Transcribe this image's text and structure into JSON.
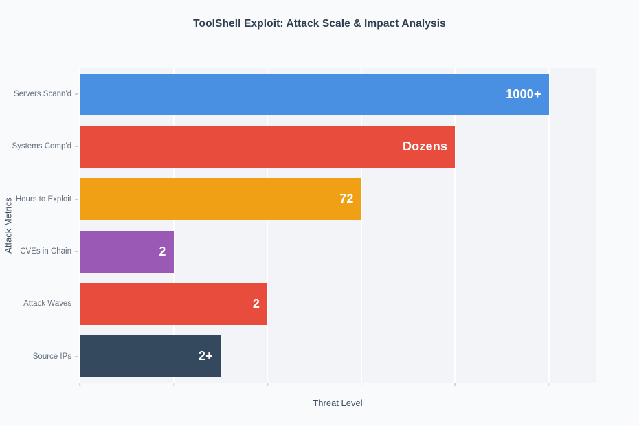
{
  "chart_data": {
    "type": "bar",
    "orientation": "horizontal",
    "title": "ToolShell Exploit: Attack Scale & Impact Analysis",
    "xlabel": "Threat Level",
    "ylabel": "Attack Metrics",
    "categories": [
      "Servers Scann'd",
      "Systems Comp'd",
      "Hours to Exploit",
      "CVEs in Chain",
      "Attack Waves",
      "Source IPs"
    ],
    "values": [
      5,
      4,
      3,
      1,
      2,
      1.5
    ],
    "value_labels": [
      "1000+",
      "Dozens",
      "72",
      "2",
      "2",
      "2+"
    ],
    "bar_colors": [
      "#4a90e2",
      "#e74c3c",
      "#f0a015",
      "#9b59b6",
      "#e74c3c",
      "#34495e"
    ],
    "xlim": [
      0,
      5.5
    ],
    "gridline_values": [
      0,
      1,
      2,
      3,
      4,
      5
    ],
    "grid": true,
    "legend": "none",
    "x_tick_labels": [],
    "plot_background": "#f2f4f7",
    "page_background": "#f9fafb",
    "label_text_color": "#ffffff",
    "title_color": "#2d3f50",
    "axis_text_color": "#3d4e61",
    "category_text_color": "#64707e"
  }
}
